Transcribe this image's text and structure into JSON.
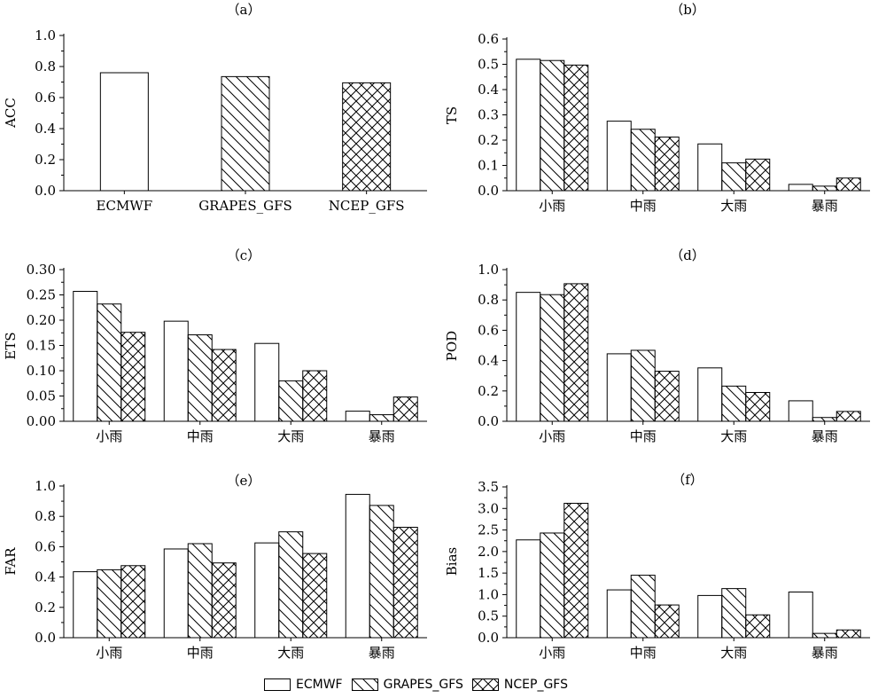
{
  "chart_data": [
    {
      "panel": "（a）",
      "type": "bar",
      "ylabel": "ACC",
      "ylim": [
        0,
        1.0
      ],
      "yticks": [
        "0.0",
        "0.2",
        "0.4",
        "0.6",
        "0.8",
        "1.0"
      ],
      "categories": [
        "ECMWF",
        "GRAPES_GFS",
        "NCEP_GFS"
      ],
      "series": [
        {
          "values": [
            0.76,
            0.735,
            0.695
          ]
        }
      ],
      "bar_patterns": [
        "none",
        "diag",
        "cross"
      ]
    },
    {
      "panel": "（b）",
      "type": "bar",
      "ylabel": "TS",
      "ylim": [
        0,
        0.6
      ],
      "yticks": [
        "0.0",
        "0.1",
        "0.2",
        "0.3",
        "0.4",
        "0.5",
        "0.6"
      ],
      "categories": [
        "小雨",
        "中雨",
        "大雨",
        "暴雨"
      ],
      "series": [
        {
          "name": "ECMWF",
          "values": [
            0.52,
            0.275,
            0.185,
            0.025
          ]
        },
        {
          "name": "GRAPES_GFS",
          "values": [
            0.515,
            0.243,
            0.11,
            0.018
          ]
        },
        {
          "name": "NCEP_GFS",
          "values": [
            0.497,
            0.212,
            0.125,
            0.05
          ]
        }
      ]
    },
    {
      "panel": "（c）",
      "type": "bar",
      "ylabel": "ETS",
      "ylim": [
        0,
        0.3
      ],
      "yticks": [
        "0.00",
        "0.05",
        "0.10",
        "0.15",
        "0.20",
        "0.25",
        "0.30"
      ],
      "categories": [
        "小雨",
        "中雨",
        "大雨",
        "暴雨"
      ],
      "series": [
        {
          "name": "ECMWF",
          "values": [
            0.257,
            0.198,
            0.154,
            0.02
          ]
        },
        {
          "name": "GRAPES_GFS",
          "values": [
            0.232,
            0.171,
            0.08,
            0.013
          ]
        },
        {
          "name": "NCEP_GFS",
          "values": [
            0.176,
            0.142,
            0.1,
            0.048
          ]
        }
      ]
    },
    {
      "panel": "（d）",
      "type": "bar",
      "ylabel": "POD",
      "ylim": [
        0,
        1.0
      ],
      "yticks": [
        "0.0",
        "0.2",
        "0.4",
        "0.6",
        "0.8",
        "1.0"
      ],
      "categories": [
        "小雨",
        "中雨",
        "大雨",
        "暴雨"
      ],
      "series": [
        {
          "name": "ECMWF",
          "values": [
            0.85,
            0.445,
            0.352,
            0.135
          ]
        },
        {
          "name": "GRAPES_GFS",
          "values": [
            0.835,
            0.468,
            0.232,
            0.025
          ]
        },
        {
          "name": "NCEP_GFS",
          "values": [
            0.907,
            0.33,
            0.19,
            0.065
          ]
        }
      ]
    },
    {
      "panel": "（e）",
      "type": "bar",
      "ylabel": "FAR",
      "ylim": [
        0,
        1.0
      ],
      "yticks": [
        "0.0",
        "0.2",
        "0.4",
        "0.6",
        "0.8",
        "1.0"
      ],
      "categories": [
        "小雨",
        "中雨",
        "大雨",
        "暴雨"
      ],
      "series": [
        {
          "name": "ECMWF",
          "values": [
            0.435,
            0.585,
            0.625,
            0.945
          ]
        },
        {
          "name": "GRAPES_GFS",
          "values": [
            0.448,
            0.62,
            0.698,
            0.872
          ]
        },
        {
          "name": "NCEP_GFS",
          "values": [
            0.475,
            0.493,
            0.555,
            0.728
          ]
        }
      ]
    },
    {
      "panel": "（f）",
      "type": "bar",
      "ylabel": "Bias",
      "ylim": [
        0,
        3.5
      ],
      "yticks": [
        "0.0",
        "0.5",
        "1.0",
        "1.5",
        "2.0",
        "2.5",
        "3.0",
        "3.5"
      ],
      "categories": [
        "小雨",
        "中雨",
        "大雨",
        "暴雨"
      ],
      "series": [
        {
          "name": "ECMWF",
          "values": [
            2.27,
            1.11,
            0.98,
            1.06
          ]
        },
        {
          "name": "GRAPES_GFS",
          "values": [
            2.43,
            1.45,
            1.14,
            0.1
          ]
        },
        {
          "name": "NCEP_GFS",
          "values": [
            3.12,
            0.76,
            0.53,
            0.18
          ]
        }
      ]
    }
  ],
  "legend": {
    "placement": "bottom-center",
    "items": [
      {
        "label": "ECMWF",
        "pattern": "none"
      },
      {
        "label": "GRAPES_GFS",
        "pattern": "diag"
      },
      {
        "label": "NCEP_GFS",
        "pattern": "cross"
      }
    ]
  },
  "colors": {
    "bar_fill": "#ffffff",
    "stroke": "#000000"
  }
}
